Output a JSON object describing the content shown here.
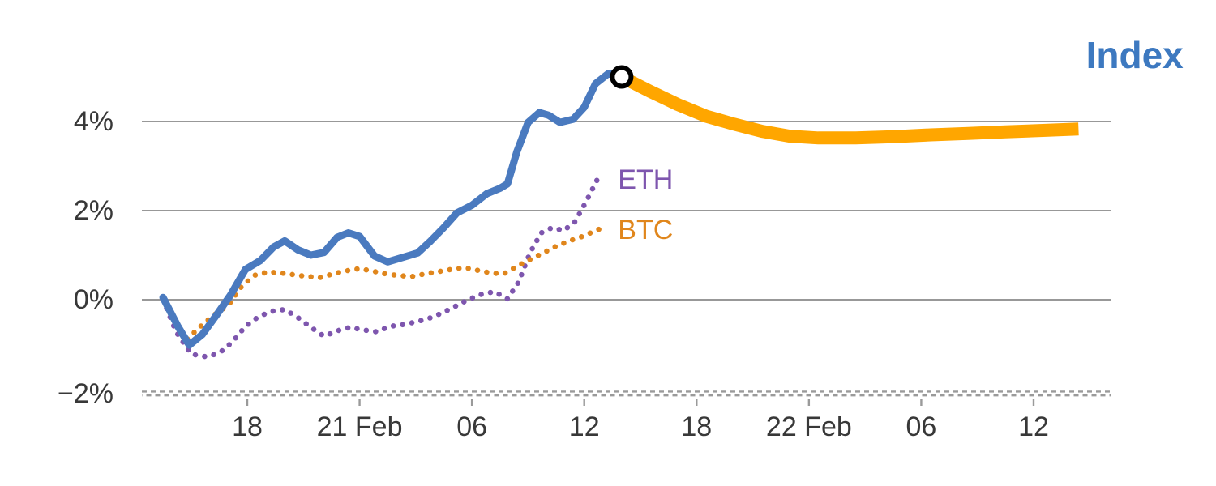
{
  "chart_data": {
    "type": "line",
    "title": "",
    "xlabel": "",
    "ylabel": "",
    "grid": "horizontal",
    "axis_style": "dashed-bottom-axis-with-ticks",
    "x_unit": "hours, ticks every 6h",
    "xlim": [
      -5.6,
      46.1
    ],
    "ylim": [
      -2.3,
      5.6
    ],
    "x_ticks": [
      {
        "t": 0,
        "label": "18"
      },
      {
        "t": 6,
        "label": "21 Feb"
      },
      {
        "t": 12,
        "label": "06"
      },
      {
        "t": 18,
        "label": "12"
      },
      {
        "t": 24,
        "label": "18"
      },
      {
        "t": 30,
        "label": "22 Feb"
      },
      {
        "t": 36,
        "label": "06"
      },
      {
        "t": 42,
        "label": "12"
      }
    ],
    "y_ticks": [
      {
        "v": 4,
        "label": "4%"
      },
      {
        "v": 2,
        "label": "2%"
      },
      {
        "v": 0,
        "label": "0%"
      },
      {
        "v": -2,
        "label": "−2%"
      }
    ],
    "series": [
      {
        "name": "ETH",
        "color": "#7e56ae",
        "line": "dotted",
        "width": 6.5,
        "cap": "round",
        "points": [
          [
            -4.5,
            0.0
          ],
          [
            -3.8,
            -0.72
          ],
          [
            -3.0,
            -1.22
          ],
          [
            -2.2,
            -1.28
          ],
          [
            -1.5,
            -1.2
          ],
          [
            -0.8,
            -0.95
          ],
          [
            -0.1,
            -0.6
          ],
          [
            0.6,
            -0.38
          ],
          [
            1.3,
            -0.26
          ],
          [
            2.0,
            -0.22
          ],
          [
            2.7,
            -0.4
          ],
          [
            3.4,
            -0.62
          ],
          [
            4.1,
            -0.82
          ],
          [
            4.8,
            -0.7
          ],
          [
            5.5,
            -0.62
          ],
          [
            6.2,
            -0.68
          ],
          [
            6.9,
            -0.72
          ],
          [
            7.6,
            -0.6
          ],
          [
            8.3,
            -0.56
          ],
          [
            9.0,
            -0.5
          ],
          [
            9.7,
            -0.42
          ],
          [
            10.4,
            -0.3
          ],
          [
            11.1,
            -0.15
          ],
          [
            11.8,
            0.0
          ],
          [
            12.5,
            0.12
          ],
          [
            13.2,
            0.18
          ],
          [
            13.9,
            0.02
          ],
          [
            14.5,
            0.4
          ],
          [
            15.1,
            1.05
          ],
          [
            15.7,
            1.5
          ],
          [
            16.3,
            1.62
          ],
          [
            16.9,
            1.55
          ],
          [
            17.5,
            1.75
          ],
          [
            18.1,
            2.2
          ],
          [
            18.7,
            2.7
          ]
        ]
      },
      {
        "name": "BTC",
        "color": "#e0861c",
        "line": "dotted",
        "width": 6.5,
        "cap": "round",
        "points": [
          [
            -4.5,
            0.02
          ],
          [
            -3.8,
            -0.55
          ],
          [
            -3.2,
            -0.88
          ],
          [
            -2.5,
            -0.6
          ],
          [
            -1.8,
            -0.35
          ],
          [
            -1.0,
            -0.12
          ],
          [
            -0.3,
            0.3
          ],
          [
            0.4,
            0.55
          ],
          [
            1.1,
            0.62
          ],
          [
            1.8,
            0.6
          ],
          [
            2.5,
            0.56
          ],
          [
            3.2,
            0.52
          ],
          [
            3.9,
            0.5
          ],
          [
            4.6,
            0.58
          ],
          [
            5.3,
            0.65
          ],
          [
            6.0,
            0.7
          ],
          [
            6.7,
            0.64
          ],
          [
            7.4,
            0.58
          ],
          [
            8.1,
            0.54
          ],
          [
            8.8,
            0.52
          ],
          [
            9.5,
            0.58
          ],
          [
            10.2,
            0.63
          ],
          [
            10.9,
            0.68
          ],
          [
            11.6,
            0.72
          ],
          [
            12.3,
            0.66
          ],
          [
            13.0,
            0.6
          ],
          [
            13.7,
            0.58
          ],
          [
            14.4,
            0.75
          ],
          [
            15.1,
            0.9
          ],
          [
            15.8,
            1.05
          ],
          [
            16.5,
            1.2
          ],
          [
            17.2,
            1.32
          ],
          [
            17.9,
            1.42
          ],
          [
            18.6,
            1.55
          ],
          [
            19.2,
            1.65
          ]
        ]
      },
      {
        "name": "Index",
        "color": "#4a7abf",
        "line": "solid",
        "width": 9,
        "cap": "round",
        "points": [
          [
            -4.5,
            0.05
          ],
          [
            -3.7,
            -0.6
          ],
          [
            -3.1,
            -1.02
          ],
          [
            -2.4,
            -0.78
          ],
          [
            -1.6,
            -0.32
          ],
          [
            -0.9,
            0.1
          ],
          [
            -0.1,
            0.68
          ],
          [
            0.7,
            0.88
          ],
          [
            1.4,
            1.18
          ],
          [
            2.0,
            1.32
          ],
          [
            2.7,
            1.12
          ],
          [
            3.4,
            1.0
          ],
          [
            4.1,
            1.06
          ],
          [
            4.8,
            1.4
          ],
          [
            5.4,
            1.5
          ],
          [
            6.0,
            1.42
          ],
          [
            6.8,
            0.98
          ],
          [
            7.5,
            0.85
          ],
          [
            8.3,
            0.95
          ],
          [
            9.1,
            1.05
          ],
          [
            9.8,
            1.32
          ],
          [
            10.5,
            1.62
          ],
          [
            11.2,
            1.95
          ],
          [
            12.0,
            2.12
          ],
          [
            12.8,
            2.38
          ],
          [
            13.5,
            2.5
          ],
          [
            13.9,
            2.6
          ],
          [
            14.4,
            3.32
          ],
          [
            15.0,
            3.98
          ],
          [
            15.6,
            4.2
          ],
          [
            16.1,
            4.14
          ],
          [
            16.7,
            3.98
          ],
          [
            17.4,
            4.05
          ],
          [
            18.0,
            4.32
          ],
          [
            18.6,
            4.85
          ],
          [
            19.3,
            5.08
          ],
          [
            20.0,
            5.0
          ]
        ]
      },
      {
        "name": "Index-projection",
        "color": "#ffa600",
        "line": "solid",
        "width": 16,
        "cap": "butt",
        "points": [
          [
            20.0,
            5.0
          ],
          [
            21.5,
            4.68
          ],
          [
            23.0,
            4.38
          ],
          [
            24.5,
            4.12
          ],
          [
            26.0,
            3.94
          ],
          [
            27.5,
            3.78
          ],
          [
            29.0,
            3.67
          ],
          [
            30.5,
            3.63
          ],
          [
            32.5,
            3.63
          ],
          [
            34.5,
            3.66
          ],
          [
            36.5,
            3.7
          ],
          [
            38.5,
            3.73
          ],
          [
            40.5,
            3.77
          ],
          [
            42.5,
            3.8
          ],
          [
            44.4,
            3.83
          ]
        ]
      }
    ],
    "marker": {
      "series": "Index",
      "t": 20.0,
      "value": 5.0,
      "shape": "open-circle",
      "stroke": "#000000",
      "fill": "#ffffff"
    },
    "annotations": [
      {
        "id": "index-label",
        "text": "Index",
        "color": "#3d79c0",
        "size": 46,
        "weight": "bold",
        "anchor": "end",
        "t": 50.0,
        "value": 5.2
      },
      {
        "id": "eth-label",
        "text": "ETH",
        "color": "#7e56ae",
        "size": 34,
        "weight": "normal",
        "anchor": "start",
        "t": 19.8,
        "value": 2.49
      },
      {
        "id": "btc-label",
        "text": "BTC",
        "color": "#e0861c",
        "size": 34,
        "weight": "normal",
        "anchor": "start",
        "t": 19.8,
        "value": 1.36
      }
    ],
    "colors": {
      "grid": "#8a8a8a",
      "axis": "#9a9a9a",
      "tick_label": "#383838",
      "background": "#ffffff"
    }
  }
}
